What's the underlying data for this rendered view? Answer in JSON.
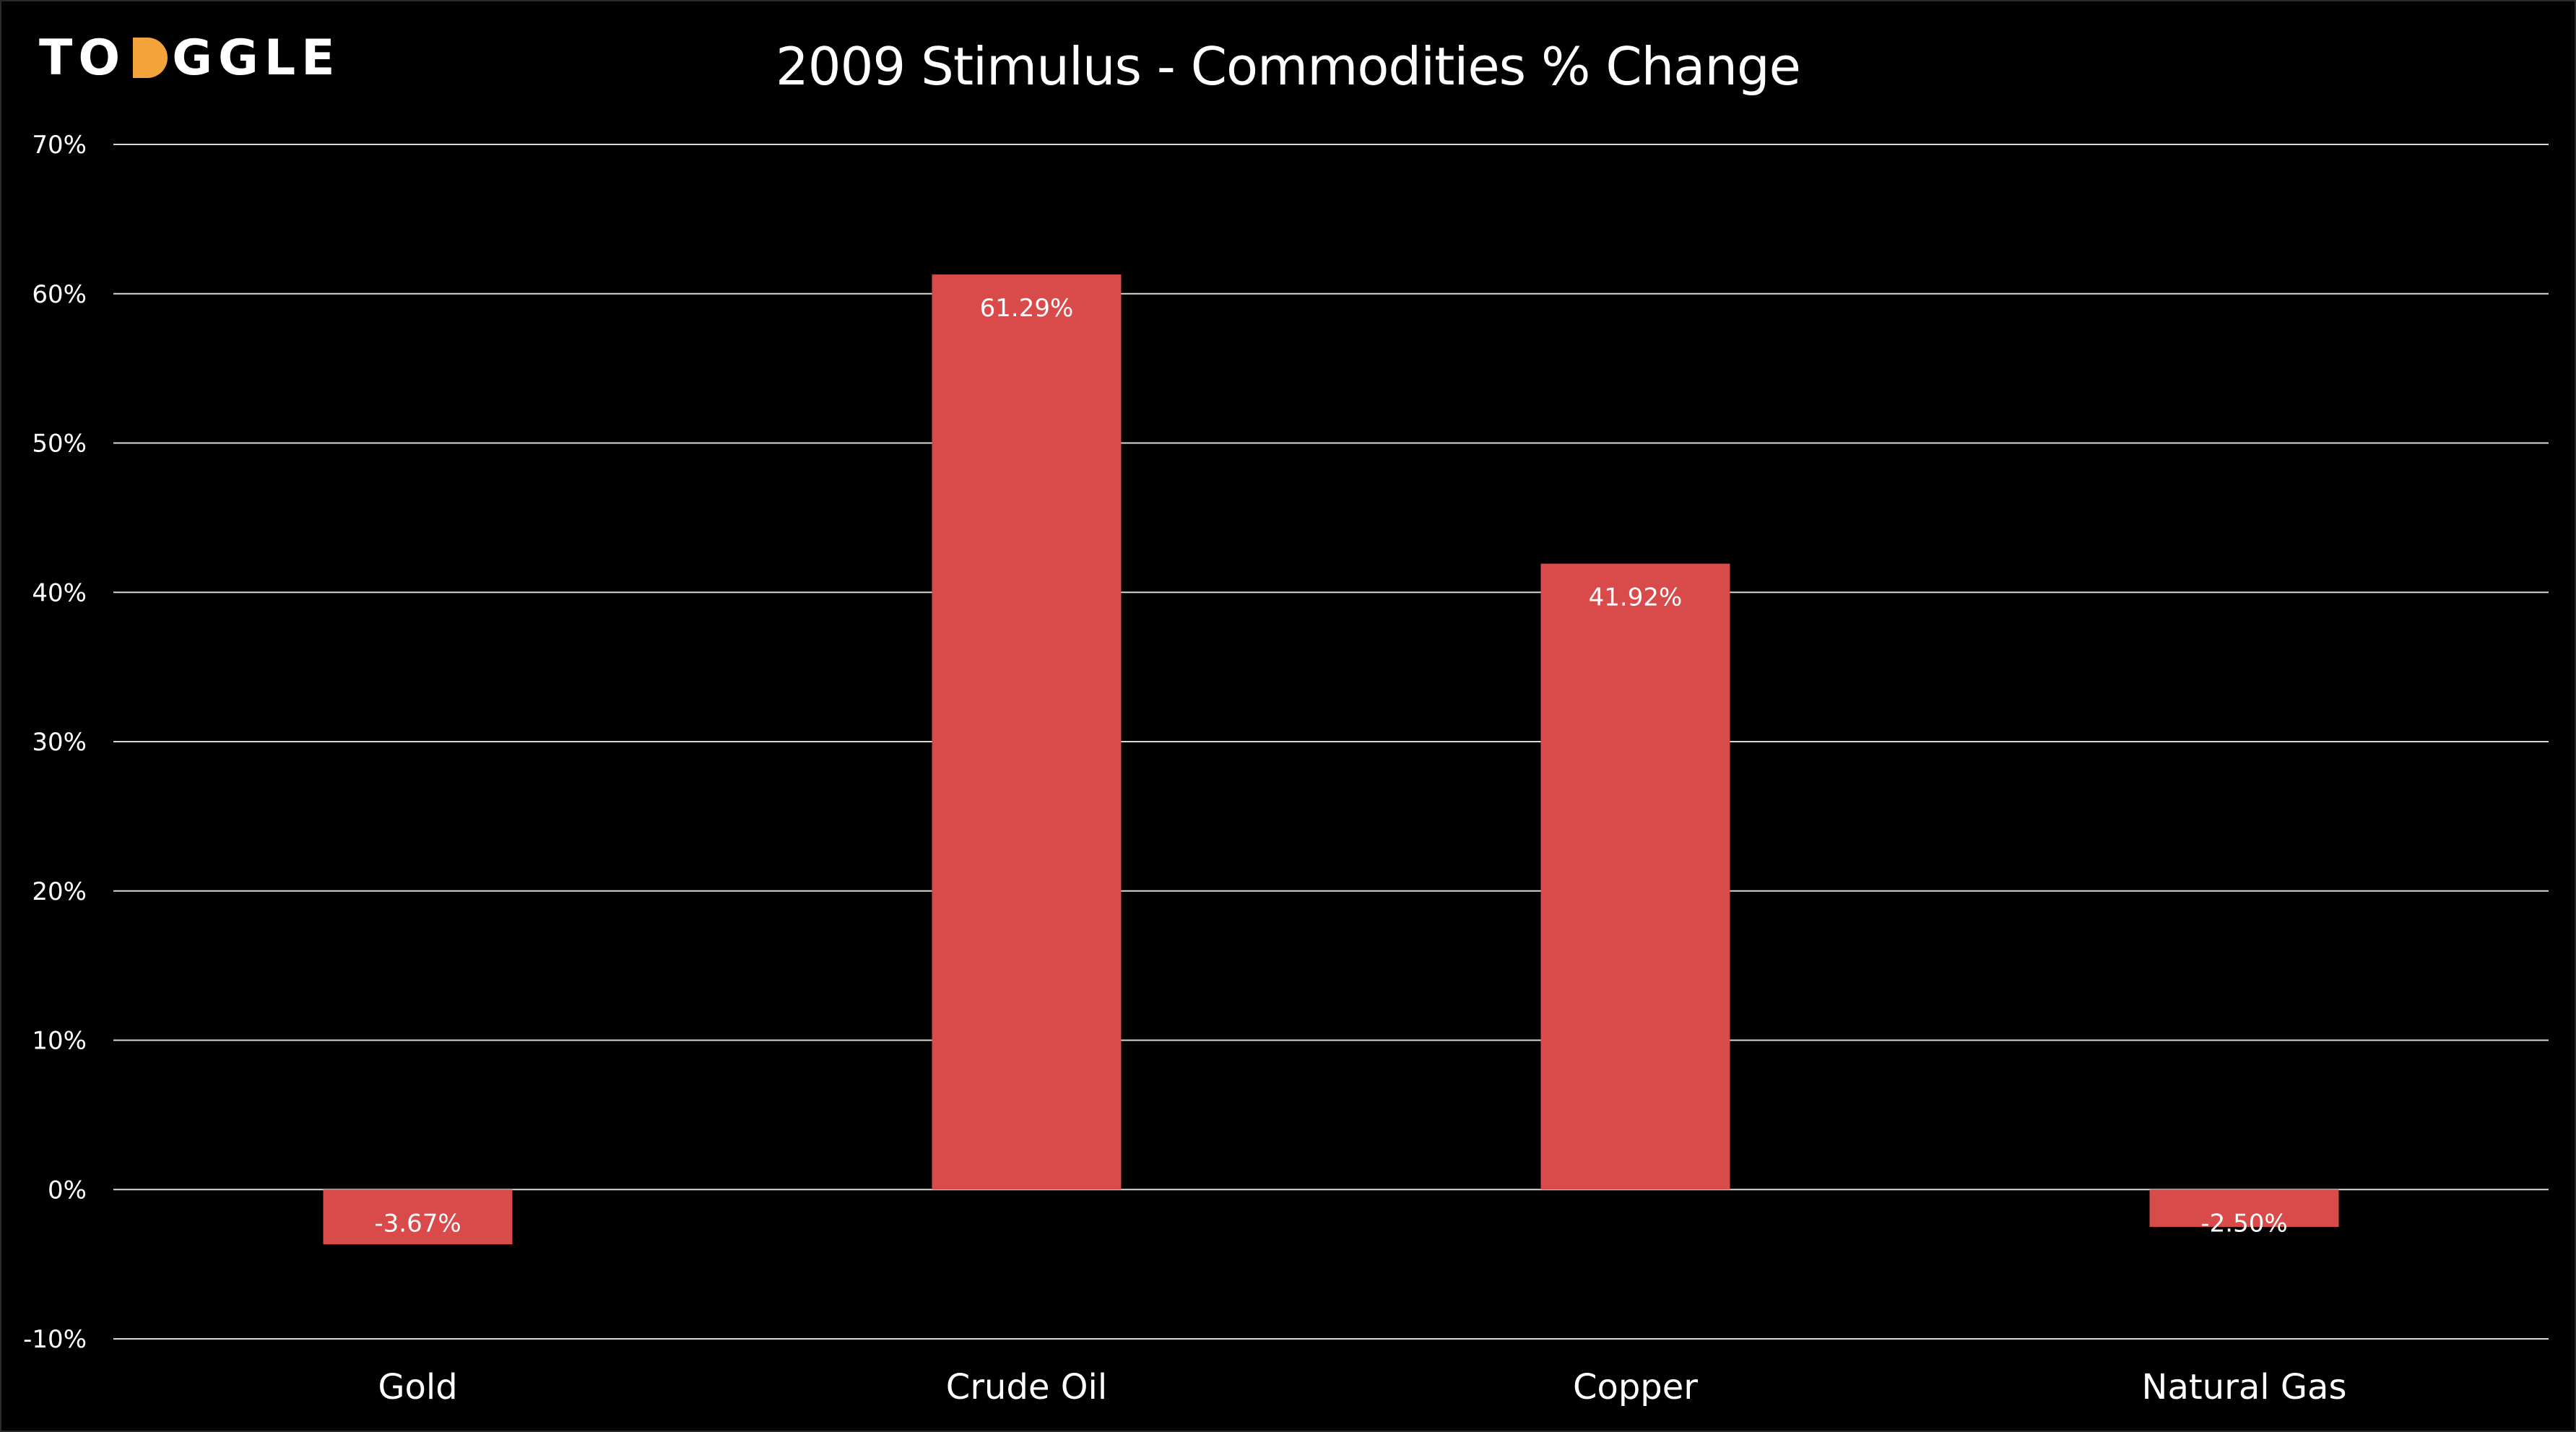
{
  "logo": {
    "before": "TO",
    "after": "GGLE",
    "accent_color": "#F2A33A"
  },
  "chart_data": {
    "type": "bar",
    "title": "2009 Stimulus - Commodities % Change",
    "xlabel": "",
    "ylabel": "",
    "categories": [
      "Gold",
      "Crude Oil",
      "Copper",
      "Natural Gas"
    ],
    "values": [
      -3.67,
      61.29,
      41.92,
      -2.5
    ],
    "data_labels": [
      "-3.67%",
      "61.29%",
      "41.92%",
      "-2.50%"
    ],
    "ylim": [
      -10,
      70
    ],
    "yticks": [
      70,
      60,
      50,
      40,
      30,
      20,
      10,
      0,
      -10
    ],
    "ytick_labels": [
      "70%",
      "60%",
      "50%",
      "40%",
      "30%",
      "20%",
      "10%",
      "0%",
      "-10%"
    ],
    "grid": true,
    "legend": "none",
    "bar_color": "#D94A4A",
    "grid_color": "#D9D9D9",
    "text_color": "#FFFFFF",
    "background": "#000000"
  }
}
